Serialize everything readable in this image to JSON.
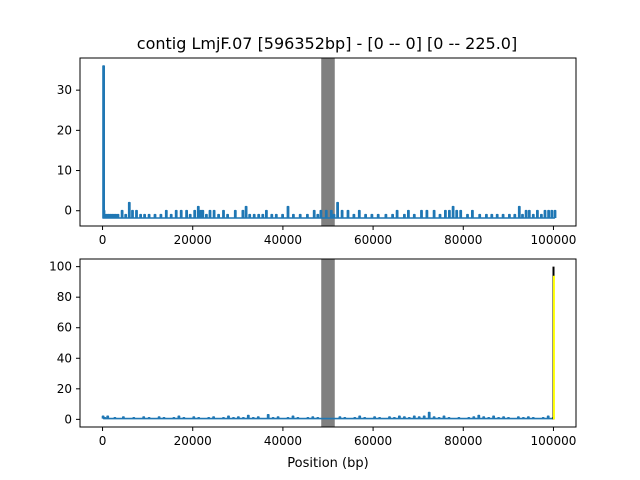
{
  "figure": {
    "title": "contig LmjF.07 [596352bp] - [0 -- 0] [0 -- 225.0]"
  },
  "chart_data": [
    {
      "type": "line",
      "panel": "top",
      "title": "contig LmjF.07 [596352bp] - [0 -- 0] [0 -- 225.0]",
      "xlabel": "",
      "ylabel": "",
      "xlim": [
        -5000,
        105000
      ],
      "ylim": [
        -3.8,
        38.0
      ],
      "grid": false,
      "xticks": [
        0,
        20000,
        40000,
        60000,
        80000,
        100000
      ],
      "xtick_labels": [
        "0",
        "20000",
        "40000",
        "60000",
        "80000",
        "100000"
      ],
      "yticks": [
        0,
        10,
        20,
        30
      ],
      "ytick_labels": [
        "0",
        "10",
        "20",
        "30"
      ],
      "shaded_region": {
        "x_start": 48500,
        "x_end": 51500,
        "color": "#808080"
      },
      "series": [
        {
          "color": "#1f77b4",
          "baseline": -1.8,
          "x": [
            0,
            100,
            200,
            400,
            800,
            1200,
            1600,
            2000,
            2400,
            2800,
            3300,
            4200,
            5000,
            5800,
            6500,
            7400,
            8300,
            9200,
            10200,
            11500,
            12800,
            14000,
            15100,
            16200,
            17300,
            18500,
            19300,
            20300,
            21100,
            21700,
            22100,
            22900,
            23700,
            24600,
            25600,
            26700,
            27600,
            29300,
            31000,
            31700,
            32500,
            33500,
            34500,
            35400,
            36200,
            37400,
            38400,
            39800,
            41000,
            42200,
            43700,
            45300,
            46800,
            47600,
            48300,
            49500,
            50600,
            51200,
            52000,
            53000,
            54300,
            55600,
            56800,
            58200,
            59600,
            61000,
            62700,
            64200,
            65200,
            66800,
            67700,
            69000,
            70600,
            71800,
            73400,
            74700,
            75900,
            76800,
            77600,
            78400,
            79300,
            80800,
            81900,
            83500,
            85000,
            86200,
            87400,
            88700,
            90100,
            91300,
            92300,
            93000,
            93800,
            94500,
            95400,
            96300,
            97200,
            98000,
            98800,
            99500,
            100200
          ],
          "y": [
            -1.8,
            36.0,
            0.0,
            -1.0,
            -1.0,
            -1.0,
            -1.0,
            -1.0,
            -1.0,
            -1.0,
            -1.0,
            0.0,
            -1.0,
            2.0,
            0.0,
            0.0,
            -1.0,
            -1.0,
            -1.0,
            -1.0,
            -1.0,
            0.0,
            -1.0,
            0.0,
            0.0,
            0.0,
            -1.0,
            0.0,
            1.0,
            0.0,
            0.0,
            -1.0,
            0.0,
            0.0,
            -1.0,
            0.0,
            -1.0,
            0.0,
            0.0,
            1.0,
            -1.0,
            -1.0,
            -1.0,
            -1.0,
            0.0,
            -1.0,
            -1.0,
            -1.0,
            1.0,
            -1.0,
            -1.0,
            -1.0,
            0.0,
            -1.0,
            0.0,
            0.0,
            0.0,
            -1.0,
            2.0,
            0.0,
            0.0,
            -1.0,
            0.0,
            -1.0,
            -1.0,
            -1.0,
            -1.0,
            -1.0,
            0.0,
            -1.0,
            0.0,
            -1.0,
            0.0,
            0.0,
            0.0,
            -1.0,
            0.0,
            0.0,
            1.0,
            0.0,
            0.0,
            -1.0,
            0.0,
            -1.0,
            -1.0,
            -1.0,
            -1.0,
            -1.0,
            -1.0,
            -1.0,
            1.0,
            -1.0,
            0.0,
            0.0,
            -1.0,
            0.0,
            -1.0,
            0.0,
            0.0,
            0.0,
            0.0
          ]
        }
      ]
    },
    {
      "type": "line",
      "panel": "bottom",
      "title": "",
      "xlabel": "Position (bp)",
      "ylabel": "",
      "xlim": [
        -5000,
        105000
      ],
      "ylim": [
        -5.0,
        105.0
      ],
      "grid": false,
      "xticks": [
        0,
        20000,
        40000,
        60000,
        80000,
        100000
      ],
      "xtick_labels": [
        "0",
        "20000",
        "40000",
        "60000",
        "80000",
        "100000"
      ],
      "yticks": [
        0,
        20,
        40,
        60,
        80,
        100
      ],
      "ytick_labels": [
        "0",
        "20",
        "40",
        "60",
        "80",
        "100"
      ],
      "shaded_region": {
        "x_start": 48500,
        "x_end": 51500,
        "color": "#808080"
      },
      "series": [
        {
          "color": "#1f77b4",
          "baseline": 0.5,
          "x": [
            0,
            400,
            1000,
            1800,
            2600,
            3500,
            4500,
            5600,
            6800,
            7900,
            9000,
            10200,
            11300,
            12400,
            13500,
            14600,
            15700,
            16800,
            17900,
            19000,
            20100,
            21200,
            22300,
            23400,
            24500,
            25600,
            26700,
            27800,
            28900,
            30000,
            31100,
            32200,
            33300,
            34400,
            35500,
            36600,
            37700,
            38800,
            39900,
            41000,
            42100,
            43200,
            44300,
            45400,
            46500,
            47600,
            52500,
            53600,
            54700,
            55800,
            56900,
            58000,
            59100,
            60200,
            61300,
            62400,
            63500,
            64600,
            65700,
            66800,
            67900,
            69000,
            70100,
            71200,
            72300,
            73400,
            74500,
            75600,
            76700,
            77800,
            78900,
            80000,
            81100,
            82200,
            83300,
            84400,
            85500,
            86600,
            87700,
            88800,
            89900,
            91000,
            92100,
            93200,
            94300,
            95400,
            96500,
            97600,
            98700,
            99800
          ],
          "y": [
            2.0,
            1.0,
            2.0,
            0.5,
            1.0,
            0.5,
            1.5,
            0.5,
            1.0,
            0.5,
            1.5,
            1.0,
            0.5,
            1.5,
            1.0,
            0.5,
            1.0,
            2.0,
            1.0,
            0.5,
            1.5,
            1.0,
            0.5,
            1.0,
            1.5,
            0.5,
            1.0,
            2.0,
            1.0,
            1.5,
            1.0,
            2.5,
            1.0,
            1.5,
            0.5,
            3.0,
            1.0,
            1.5,
            0.5,
            1.0,
            2.0,
            1.0,
            0.5,
            1.0,
            1.5,
            1.0,
            1.5,
            1.0,
            0.5,
            1.0,
            2.0,
            1.0,
            0.5,
            1.5,
            1.0,
            0.5,
            1.5,
            1.0,
            2.0,
            1.5,
            1.0,
            2.0,
            1.5,
            2.0,
            4.5,
            1.5,
            1.0,
            2.0,
            1.0,
            0.5,
            1.0,
            0.5,
            1.0,
            1.5,
            2.5,
            1.5,
            1.0,
            2.0,
            1.0,
            1.5,
            1.0,
            0.5,
            1.5,
            1.0,
            1.5,
            1.0,
            0.5,
            1.0,
            2.0,
            1.0
          ]
        },
        {
          "color": "#000000",
          "x": [
            100000,
            100000
          ],
          "y": [
            0,
            100
          ]
        },
        {
          "color": "#ffff00",
          "x": [
            100100,
            100100
          ],
          "y": [
            0,
            94
          ]
        }
      ]
    }
  ]
}
